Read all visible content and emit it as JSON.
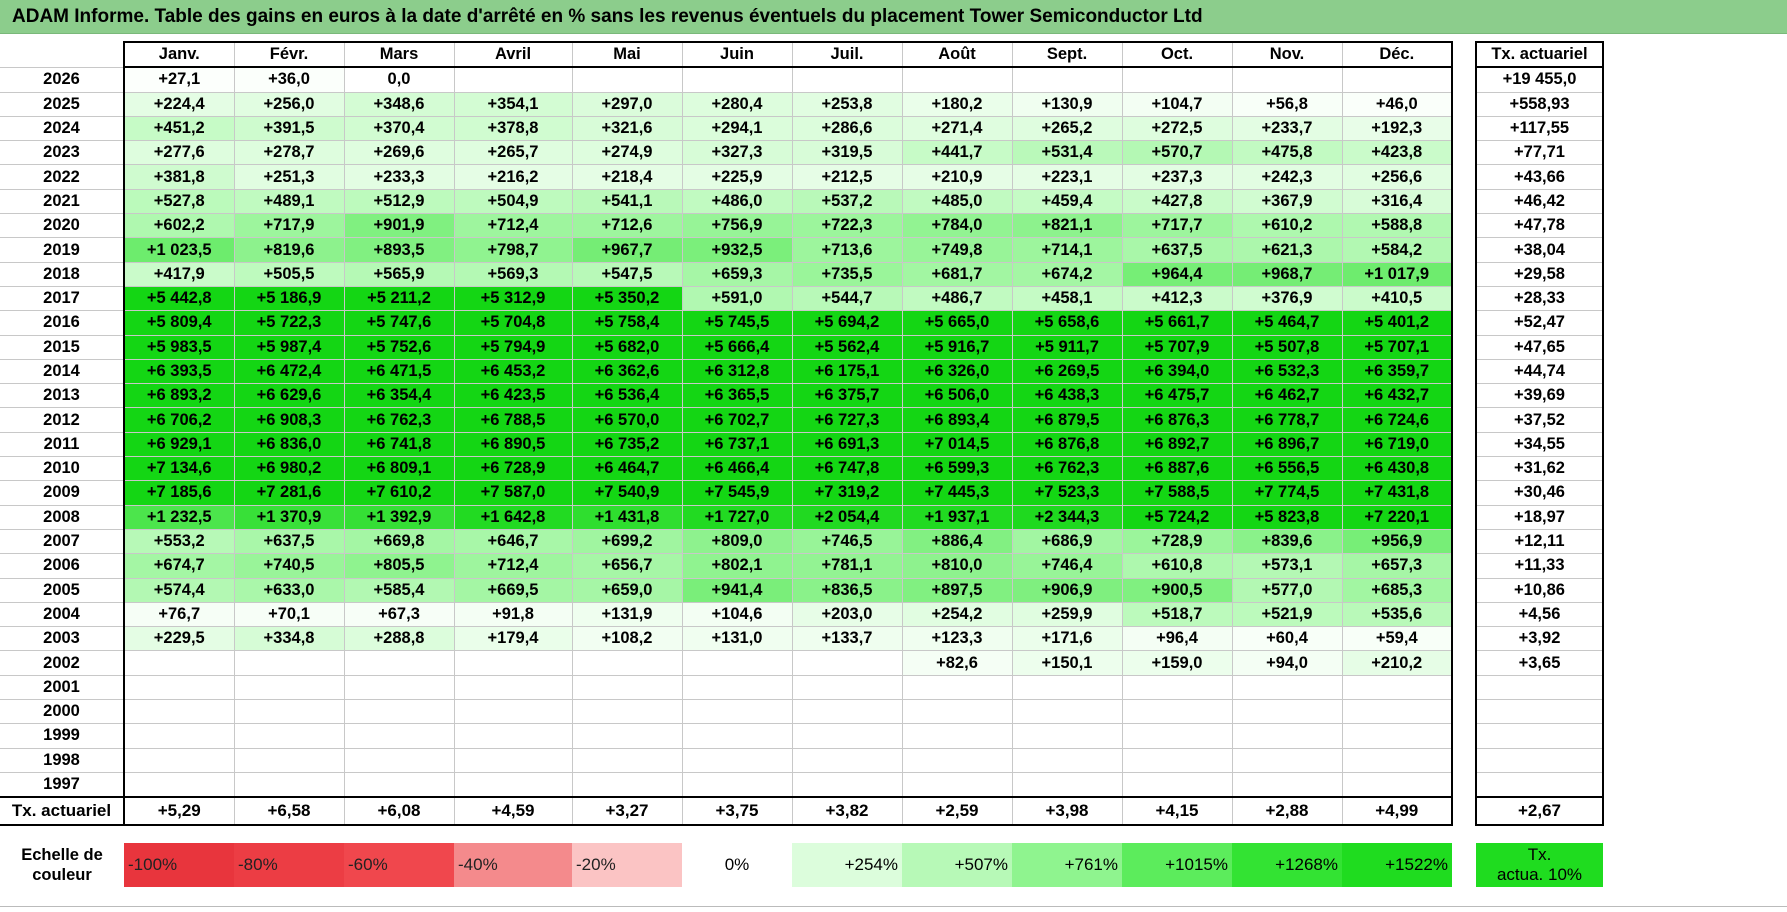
{
  "title": "ADAM Informe. Table des gains en euros à la date d'arrêté en % sans les revenus éventuels du placement Tower Semiconductor Ltd",
  "months": [
    "Janv.",
    "Févr.",
    "Mars",
    "Avril",
    "Mai",
    "Juin",
    "Juil.",
    "Août",
    "Sept.",
    "Oct.",
    "Nov.",
    "Déc."
  ],
  "actuarial_header": "Tx. actuariel",
  "rows": [
    {
      "year": "2026",
      "values": [
        "+27,1",
        "+36,0",
        "0,0",
        "",
        "",
        "",
        "",
        "",
        "",
        "",
        "",
        ""
      ],
      "actuarial": "+19 455,0"
    },
    {
      "year": "2025",
      "values": [
        "+224,4",
        "+256,0",
        "+348,6",
        "+354,1",
        "+297,0",
        "+280,4",
        "+253,8",
        "+180,2",
        "+130,9",
        "+104,7",
        "+56,8",
        "+46,0"
      ],
      "actuarial": "+558,93"
    },
    {
      "year": "2024",
      "values": [
        "+451,2",
        "+391,5",
        "+370,4",
        "+378,8",
        "+321,6",
        "+294,1",
        "+286,6",
        "+271,4",
        "+265,2",
        "+272,5",
        "+233,7",
        "+192,3"
      ],
      "actuarial": "+117,55"
    },
    {
      "year": "2023",
      "values": [
        "+277,6",
        "+278,7",
        "+269,6",
        "+265,7",
        "+274,9",
        "+327,3",
        "+319,5",
        "+441,7",
        "+531,4",
        "+570,7",
        "+475,8",
        "+423,8"
      ],
      "actuarial": "+77,71"
    },
    {
      "year": "2022",
      "values": [
        "+381,8",
        "+251,3",
        "+233,3",
        "+216,2",
        "+218,4",
        "+225,9",
        "+212,5",
        "+210,9",
        "+223,1",
        "+237,3",
        "+242,3",
        "+256,6"
      ],
      "actuarial": "+43,66"
    },
    {
      "year": "2021",
      "values": [
        "+527,8",
        "+489,1",
        "+512,9",
        "+504,9",
        "+541,1",
        "+486,0",
        "+537,2",
        "+485,0",
        "+459,4",
        "+427,8",
        "+367,9",
        "+316,4"
      ],
      "actuarial": "+46,42"
    },
    {
      "year": "2020",
      "values": [
        "+602,2",
        "+717,9",
        "+901,9",
        "+712,4",
        "+712,6",
        "+756,9",
        "+722,3",
        "+784,0",
        "+821,1",
        "+717,7",
        "+610,2",
        "+588,8"
      ],
      "actuarial": "+47,78"
    },
    {
      "year": "2019",
      "values": [
        "+1 023,5",
        "+819,6",
        "+893,5",
        "+798,7",
        "+967,7",
        "+932,5",
        "+713,6",
        "+749,8",
        "+714,1",
        "+637,5",
        "+621,3",
        "+584,2"
      ],
      "actuarial": "+38,04"
    },
    {
      "year": "2018",
      "values": [
        "+417,9",
        "+505,5",
        "+565,9",
        "+569,3",
        "+547,5",
        "+659,3",
        "+735,5",
        "+681,7",
        "+674,2",
        "+964,4",
        "+968,7",
        "+1 017,9"
      ],
      "actuarial": "+29,58"
    },
    {
      "year": "2017",
      "values": [
        "+5 442,8",
        "+5 186,9",
        "+5 211,2",
        "+5 312,9",
        "+5 350,2",
        "+591,0",
        "+544,7",
        "+486,7",
        "+458,1",
        "+412,3",
        "+376,9",
        "+410,5"
      ],
      "actuarial": "+28,33"
    },
    {
      "year": "2016",
      "values": [
        "+5 809,4",
        "+5 722,3",
        "+5 747,6",
        "+5 704,8",
        "+5 758,4",
        "+5 745,5",
        "+5 694,2",
        "+5 665,0",
        "+5 658,6",
        "+5 661,7",
        "+5 464,7",
        "+5 401,2"
      ],
      "actuarial": "+52,47"
    },
    {
      "year": "2015",
      "values": [
        "+5 983,5",
        "+5 987,4",
        "+5 752,6",
        "+5 794,9",
        "+5 682,0",
        "+5 666,4",
        "+5 562,4",
        "+5 916,7",
        "+5 911,7",
        "+5 707,9",
        "+5 507,8",
        "+5 707,1"
      ],
      "actuarial": "+47,65"
    },
    {
      "year": "2014",
      "values": [
        "+6 393,5",
        "+6 472,4",
        "+6 471,5",
        "+6 453,2",
        "+6 362,6",
        "+6 312,8",
        "+6 175,1",
        "+6 326,0",
        "+6 269,5",
        "+6 394,0",
        "+6 532,3",
        "+6 359,7"
      ],
      "actuarial": "+44,74"
    },
    {
      "year": "2013",
      "values": [
        "+6 893,2",
        "+6 629,6",
        "+6 354,4",
        "+6 423,5",
        "+6 536,4",
        "+6 365,5",
        "+6 375,7",
        "+6 506,0",
        "+6 438,3",
        "+6 475,7",
        "+6 462,7",
        "+6 432,7"
      ],
      "actuarial": "+39,69"
    },
    {
      "year": "2012",
      "values": [
        "+6 706,2",
        "+6 908,3",
        "+6 762,3",
        "+6 788,5",
        "+6 570,0",
        "+6 702,7",
        "+6 727,3",
        "+6 893,4",
        "+6 879,5",
        "+6 876,3",
        "+6 778,7",
        "+6 724,6"
      ],
      "actuarial": "+37,52"
    },
    {
      "year": "2011",
      "values": [
        "+6 929,1",
        "+6 836,0",
        "+6 741,8",
        "+6 890,5",
        "+6 735,2",
        "+6 737,1",
        "+6 691,3",
        "+7 014,5",
        "+6 876,8",
        "+6 892,7",
        "+6 896,7",
        "+6 719,0"
      ],
      "actuarial": "+34,55"
    },
    {
      "year": "2010",
      "values": [
        "+7 134,6",
        "+6 980,2",
        "+6 809,1",
        "+6 728,9",
        "+6 464,7",
        "+6 466,4",
        "+6 747,8",
        "+6 599,3",
        "+6 762,3",
        "+6 887,6",
        "+6 556,5",
        "+6 430,8"
      ],
      "actuarial": "+31,62"
    },
    {
      "year": "2009",
      "values": [
        "+7 185,6",
        "+7 281,6",
        "+7 610,2",
        "+7 587,0",
        "+7 540,9",
        "+7 545,9",
        "+7 319,2",
        "+7 445,3",
        "+7 523,3",
        "+7 588,5",
        "+7 774,5",
        "+7 431,8"
      ],
      "actuarial": "+30,46"
    },
    {
      "year": "2008",
      "values": [
        "+1 232,5",
        "+1 370,9",
        "+1 392,9",
        "+1 642,8",
        "+1 431,8",
        "+1 727,0",
        "+2 054,4",
        "+1 937,1",
        "+2 344,3",
        "+5 724,2",
        "+5 823,8",
        "+7 220,1"
      ],
      "actuarial": "+18,97"
    },
    {
      "year": "2007",
      "values": [
        "+553,2",
        "+637,5",
        "+669,8",
        "+646,7",
        "+699,2",
        "+809,0",
        "+746,5",
        "+886,4",
        "+686,9",
        "+728,9",
        "+839,6",
        "+956,9"
      ],
      "actuarial": "+12,11"
    },
    {
      "year": "2006",
      "values": [
        "+674,7",
        "+740,5",
        "+805,5",
        "+712,4",
        "+656,7",
        "+802,1",
        "+781,1",
        "+810,0",
        "+746,4",
        "+610,8",
        "+573,1",
        "+657,3"
      ],
      "actuarial": "+11,33"
    },
    {
      "year": "2005",
      "values": [
        "+574,4",
        "+633,0",
        "+585,4",
        "+669,5",
        "+659,0",
        "+941,4",
        "+836,5",
        "+897,5",
        "+906,9",
        "+900,5",
        "+577,0",
        "+685,3"
      ],
      "actuarial": "+10,86"
    },
    {
      "year": "2004",
      "values": [
        "+76,7",
        "+70,1",
        "+67,3",
        "+91,8",
        "+131,9",
        "+104,6",
        "+203,0",
        "+254,2",
        "+259,9",
        "+518,7",
        "+521,9",
        "+535,6"
      ],
      "actuarial": "+4,56"
    },
    {
      "year": "2003",
      "values": [
        "+229,5",
        "+334,8",
        "+288,8",
        "+179,4",
        "+108,2",
        "+131,0",
        "+133,7",
        "+123,3",
        "+171,6",
        "+96,4",
        "+60,4",
        "+59,4"
      ],
      "actuarial": "+3,92"
    },
    {
      "year": "2002",
      "values": [
        "",
        "",
        "",
        "",
        "",
        "",
        "",
        "+82,6",
        "+150,1",
        "+159,0",
        "+94,0",
        "+210,2"
      ],
      "actuarial": "+3,65"
    },
    {
      "year": "2001",
      "values": [
        "",
        "",
        "",
        "",
        "",
        "",
        "",
        "",
        "",
        "",
        "",
        ""
      ],
      "actuarial": ""
    },
    {
      "year": "2000",
      "values": [
        "",
        "",
        "",
        "",
        "",
        "",
        "",
        "",
        "",
        "",
        "",
        ""
      ],
      "actuarial": ""
    },
    {
      "year": "1999",
      "values": [
        "",
        "",
        "",
        "",
        "",
        "",
        "",
        "",
        "",
        "",
        "",
        ""
      ],
      "actuarial": ""
    },
    {
      "year": "1998",
      "values": [
        "",
        "",
        "",
        "",
        "",
        "",
        "",
        "",
        "",
        "",
        "",
        ""
      ],
      "actuarial": ""
    },
    {
      "year": "1997",
      "values": [
        "",
        "",
        "",
        "",
        "",
        "",
        "",
        "",
        "",
        "",
        "",
        ""
      ],
      "actuarial": ""
    }
  ],
  "totals": {
    "label": "Tx. actuariel",
    "values": [
      "+5,29",
      "+6,58",
      "+6,08",
      "+4,59",
      "+3,27",
      "+3,75",
      "+3,82",
      "+2,59",
      "+3,98",
      "+4,15",
      "+2,88",
      "+4,99"
    ],
    "actuarial": "+2,67"
  },
  "scale": {
    "label_line1": "Echelle de",
    "label_line2": "couleur",
    "steps": [
      {
        "label": "-100%",
        "color": "#e8353d",
        "kind": "neg"
      },
      {
        "label": "-80%",
        "color": "#ec3d44",
        "kind": "neg"
      },
      {
        "label": "-60%",
        "color": "#f0474d",
        "kind": "neg"
      },
      {
        "label": "-40%",
        "color": "#f48a8c",
        "kind": "neg"
      },
      {
        "label": "-20%",
        "color": "#fbc4c4",
        "kind": "neg"
      },
      {
        "label": "0%",
        "color": "#ffffff",
        "kind": "zero"
      },
      {
        "label": "+254%",
        "color": "#dcfddc",
        "kind": "pos"
      },
      {
        "label": "+507%",
        "color": "#b7f9b7",
        "kind": "pos"
      },
      {
        "label": "+761%",
        "color": "#8ff48f",
        "kind": "pos"
      },
      {
        "label": "+1015%",
        "color": "#5cec5c",
        "kind": "pos"
      },
      {
        "label": "+1268%",
        "color": "#33e333",
        "kind": "pos"
      },
      {
        "label": "+1522%",
        "color": "#1fdc1f",
        "kind": "pos"
      }
    ],
    "tx_line1": "Tx.",
    "tx_line2": "actua. 10%",
    "tx_color": "#1fdc1f"
  },
  "colors": {
    "title_bg": "#8ccd8c",
    "max_green": "#12d512"
  }
}
